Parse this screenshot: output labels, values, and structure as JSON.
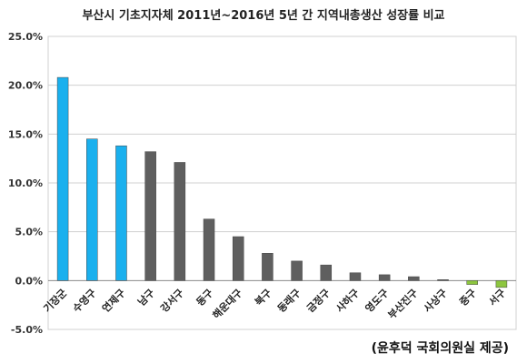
{
  "chart_data": {
    "type": "bar",
    "title": "부산시 기초지자체 2011년~2016년 5년 간 지역내총생산 성장률 비교",
    "source": "(윤후덕 국회의원실 제공)",
    "xlabel": "",
    "ylabel": "",
    "ylim": [
      -5.0,
      25.0
    ],
    "yticks": [
      25.0,
      20.0,
      15.0,
      10.0,
      5.0,
      0.0,
      -5.0
    ],
    "ytick_labels": [
      "25.0%",
      "20.0%",
      "15.0%",
      "10.0%",
      "5.0%",
      "0.0%",
      "-5.0%"
    ],
    "grid": true,
    "legend": "none",
    "categories": [
      "기장군",
      "수영구",
      "연제구",
      "남구",
      "강서구",
      "동구",
      "해운대구",
      "북구",
      "동래구",
      "금정구",
      "사하구",
      "영도구",
      "부산진구",
      "사상구",
      "중구",
      "서구"
    ],
    "values": [
      20.8,
      14.5,
      13.8,
      13.2,
      12.1,
      6.3,
      4.5,
      2.8,
      2.0,
      1.6,
      0.8,
      0.6,
      0.4,
      0.1,
      -0.4,
      -0.7
    ],
    "colors": {
      "top3": "#1ab0ee",
      "middle": "#5f5f5f",
      "negative": "#8dc63f",
      "grid": "#d0d0d0",
      "axis": "#8a8a8a"
    }
  }
}
